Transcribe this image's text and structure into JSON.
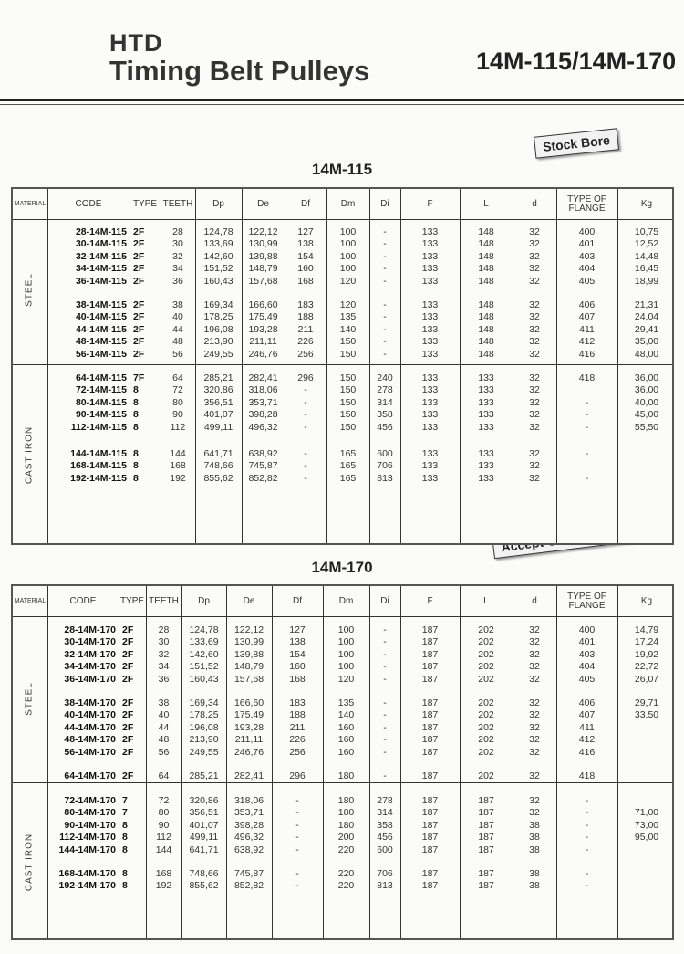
{
  "header": {
    "brand": "HTD",
    "title": "Timing Belt Pulleys",
    "models": "14M-115/14M-170"
  },
  "stickers": {
    "stock_bore": "Stock Bore",
    "oem": "Accept OEM purchase."
  },
  "columns": [
    "MATERIAL",
    "CODE",
    "TYPE",
    "TEETH",
    "Dp",
    "De",
    "Df",
    "Dm",
    "Di",
    "F",
    "L",
    "d",
    "TYPE OF FLANGE",
    "Kg"
  ],
  "tables": [
    {
      "title": "14M-115",
      "materials": [
        {
          "name": "STEEL",
          "groups": [
            [
              [
                "28-14M-115",
                "2F",
                "28",
                "124,78",
                "122,12",
                "127",
                "100",
                "-",
                "133",
                "148",
                "32",
                "400",
                "10,75"
              ],
              [
                "30-14M-115",
                "2F",
                "30",
                "133,69",
                "130,99",
                "138",
                "100",
                "-",
                "133",
                "148",
                "32",
                "401",
                "12,52"
              ],
              [
                "32-14M-115",
                "2F",
                "32",
                "142,60",
                "139,88",
                "154",
                "100",
                "-",
                "133",
                "148",
                "32",
                "403",
                "14,48"
              ],
              [
                "34-14M-115",
                "2F",
                "34",
                "151,52",
                "148,79",
                "160",
                "100",
                "-",
                "133",
                "148",
                "32",
                "404",
                "16,45"
              ],
              [
                "36-14M-115",
                "2F",
                "36",
                "160,43",
                "157,68",
                "168",
                "120",
                "-",
                "133",
                "148",
                "32",
                "405",
                "18,99"
              ]
            ],
            [
              [
                "38-14M-115",
                "2F",
                "38",
                "169,34",
                "166,60",
                "183",
                "120",
                "-",
                "133",
                "148",
                "32",
                "406",
                "21,31"
              ],
              [
                "40-14M-115",
                "2F",
                "40",
                "178,25",
                "175,49",
                "188",
                "135",
                "-",
                "133",
                "148",
                "32",
                "407",
                "24,04"
              ],
              [
                "44-14M-115",
                "2F",
                "44",
                "196,08",
                "193,28",
                "211",
                "140",
                "-",
                "133",
                "148",
                "32",
                "411",
                "29,41"
              ],
              [
                "48-14M-115",
                "2F",
                "48",
                "213,90",
                "211,11",
                "226",
                "150",
                "-",
                "133",
                "148",
                "32",
                "412",
                "35,00"
              ],
              [
                "56-14M-115",
                "2F",
                "56",
                "249,55",
                "246,76",
                "256",
                "150",
                "-",
                "133",
                "148",
                "32",
                "416",
                "48,00"
              ]
            ]
          ]
        },
        {
          "name": "CAST IRON",
          "groups": [
            [
              [
                "64-14M-115",
                "7F",
                "64",
                "285,21",
                "282,41",
                "296",
                "150",
                "240",
                "133",
                "133",
                "32",
                "418",
                "36,00"
              ],
              [
                "72-14M-115",
                "8",
                "72",
                "320,86",
                "318,06",
                "-",
                "150",
                "278",
                "133",
                "133",
                "32",
                "",
                "36,00"
              ],
              [
                "80-14M-115",
                "8",
                "80",
                "356,51",
                "353,71",
                "-",
                "150",
                "314",
                "133",
                "133",
                "32",
                "-",
                "40,00"
              ],
              [
                "90-14M-115",
                "8",
                "90",
                "401,07",
                "398,28",
                "-",
                "150",
                "358",
                "133",
                "133",
                "32",
                "-",
                "45,00"
              ],
              [
                "112-14M-115",
                "8",
                "112",
                "499,11",
                "496,32",
                "-",
                "150",
                "456",
                "133",
                "133",
                "32",
                "-",
                "55,50"
              ]
            ],
            [
              [
                "144-14M-115",
                "8",
                "144",
                "641,71",
                "638,92",
                "-",
                "165",
                "600",
                "133",
                "133",
                "32",
                "-",
                ""
              ],
              [
                "168-14M-115",
                "8",
                "168",
                "748,66",
                "745,87",
                "-",
                "165",
                "706",
                "133",
                "133",
                "32",
                "",
                ""
              ],
              [
                "192-14M-115",
                "8",
                "192",
                "855,62",
                "852,82",
                "-",
                "165",
                "813",
                "133",
                "133",
                "32",
                "-",
                ""
              ]
            ]
          ]
        }
      ]
    },
    {
      "title": "14M-170",
      "materials": [
        {
          "name": "STEEL",
          "groups": [
            [
              [
                "28-14M-170",
                "2F",
                "28",
                "124,78",
                "122,12",
                "127",
                "100",
                "-",
                "187",
                "202",
                "32",
                "400",
                "14,79"
              ],
              [
                "30-14M-170",
                "2F",
                "30",
                "133,69",
                "130,99",
                "138",
                "100",
                "-",
                "187",
                "202",
                "32",
                "401",
                "17,24"
              ],
              [
                "32-14M-170",
                "2F",
                "32",
                "142,60",
                "139,88",
                "154",
                "100",
                "-",
                "187",
                "202",
                "32",
                "403",
                "19,92"
              ],
              [
                "34-14M-170",
                "2F",
                "34",
                "151,52",
                "148,79",
                "160",
                "100",
                "-",
                "187",
                "202",
                "32",
                "404",
                "22,72"
              ],
              [
                "36-14M-170",
                "2F",
                "36",
                "160,43",
                "157,68",
                "168",
                "120",
                "-",
                "187",
                "202",
                "32",
                "405",
                "26,07"
              ]
            ],
            [
              [
                "38-14M-170",
                "2F",
                "38",
                "169,34",
                "166,60",
                "183",
                "135",
                "-",
                "187",
                "202",
                "32",
                "406",
                "29,71"
              ],
              [
                "40-14M-170",
                "2F",
                "40",
                "178,25",
                "175,49",
                "188",
                "140",
                "-",
                "187",
                "202",
                "32",
                "407",
                "33,50"
              ],
              [
                "44-14M-170",
                "2F",
                "44",
                "196,08",
                "193,28",
                "211",
                "160",
                "-",
                "187",
                "202",
                "32",
                "411",
                ""
              ],
              [
                "48-14M-170",
                "2F",
                "48",
                "213,90",
                "211,11",
                "226",
                "160",
                "-",
                "187",
                "202",
                "32",
                "412",
                ""
              ],
              [
                "56-14M-170",
                "2F",
                "56",
                "249,55",
                "246,76",
                "256",
                "160",
                "-",
                "187",
                "202",
                "32",
                "416",
                ""
              ]
            ],
            [
              [
                "64-14M-170",
                "2F",
                "64",
                "285,21",
                "282,41",
                "296",
                "180",
                "-",
                "187",
                "202",
                "32",
                "418",
                ""
              ]
            ]
          ]
        },
        {
          "name": "CAST IRON",
          "groups": [
            [
              [
                "72-14M-170",
                "7",
                "72",
                "320,86",
                "318,06",
                "-",
                "180",
                "278",
                "187",
                "187",
                "32",
                "-",
                ""
              ],
              [
                "80-14M-170",
                "7",
                "80",
                "356,51",
                "353,71",
                "-",
                "180",
                "314",
                "187",
                "187",
                "32",
                "-",
                "71,00"
              ],
              [
                "90-14M-170",
                "8",
                "90",
                "401,07",
                "398,28",
                "-",
                "180",
                "358",
                "187",
                "187",
                "38",
                "-",
                "73,00"
              ],
              [
                "112-14M-170",
                "8",
                "112",
                "499,11",
                "496,32",
                "-",
                "200",
                "456",
                "187",
                "187",
                "38",
                "-",
                "95,00"
              ],
              [
                "144-14M-170",
                "8",
                "144",
                "641,71",
                "638,92",
                "-",
                "220",
                "600",
                "187",
                "187",
                "38",
                "-",
                ""
              ]
            ],
            [
              [
                "168-14M-170",
                "8",
                "168",
                "748,66",
                "745,87",
                "-",
                "220",
                "706",
                "187",
                "187",
                "38",
                "-",
                ""
              ],
              [
                "192-14M-170",
                "8",
                "192",
                "855,62",
                "852,82",
                "-",
                "220",
                "813",
                "187",
                "187",
                "38",
                "-",
                ""
              ]
            ]
          ]
        }
      ]
    }
  ]
}
